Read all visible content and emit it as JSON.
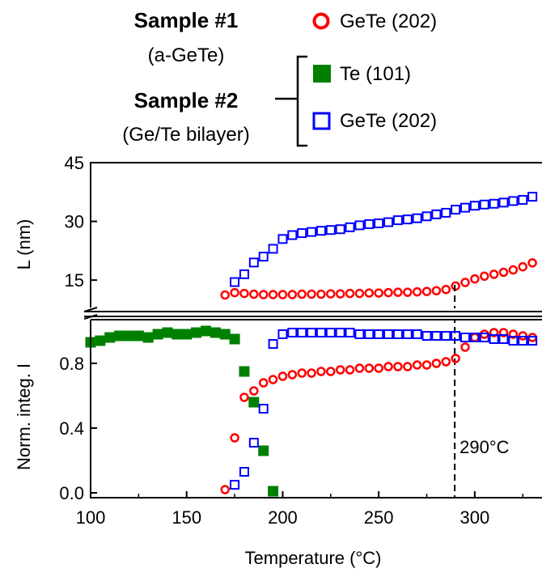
{
  "legend": {
    "sample1_title": "Sample #1",
    "sample1_sub": "(a-GeTe)",
    "sample2_title": "Sample #2",
    "sample2_sub": "(Ge/Te bilayer)",
    "entries": [
      {
        "label": "GeTe (202)",
        "marker": "open-circle",
        "color": "#ff0000",
        "sample": "Sample #1"
      },
      {
        "label": "Te (101)",
        "marker": "filled-square",
        "color": "#008000",
        "sample": "Sample #2"
      },
      {
        "label": "GeTe (202)",
        "marker": "open-square",
        "color": "#0000ff",
        "sample": "Sample #2"
      }
    ]
  },
  "chart_data": [
    {
      "type": "scatter",
      "panel": "top",
      "ylabel": "L (nm)",
      "ylim": [
        8,
        45
      ],
      "yticks": [
        15,
        30,
        45
      ],
      "xlim": [
        100,
        335
      ],
      "series": [
        {
          "name": "GeTe (202)",
          "marker": "open-circle",
          "color": "#ff0000",
          "x": [
            170,
            175,
            180,
            185,
            190,
            195,
            200,
            205,
            210,
            215,
            220,
            225,
            230,
            235,
            240,
            245,
            250,
            255,
            260,
            265,
            270,
            275,
            280,
            285,
            290,
            295,
            300,
            305,
            310,
            315,
            320,
            325,
            330
          ],
          "y": [
            11.2,
            11.8,
            11.6,
            11.4,
            11.3,
            11.3,
            11.3,
            11.3,
            11.4,
            11.4,
            11.4,
            11.5,
            11.5,
            11.6,
            11.6,
            11.7,
            11.7,
            11.8,
            11.9,
            11.9,
            12.0,
            12.1,
            12.3,
            12.6,
            13.5,
            14.4,
            15.3,
            16.0,
            16.5,
            17.0,
            17.6,
            18.4,
            19.4
          ]
        },
        {
          "name": "GeTe (202)",
          "marker": "open-square",
          "color": "#0000ff",
          "x": [
            175,
            180,
            185,
            190,
            195,
            200,
            205,
            210,
            215,
            220,
            225,
            230,
            235,
            240,
            245,
            250,
            255,
            260,
            265,
            270,
            275,
            280,
            285,
            290,
            295,
            300,
            305,
            310,
            315,
            320,
            325,
            330
          ],
          "y": [
            14.5,
            16.5,
            19.5,
            21.0,
            23.0,
            25.5,
            26.5,
            27.0,
            27.3,
            27.6,
            27.8,
            28.0,
            28.5,
            29.0,
            29.3,
            29.5,
            29.8,
            30.3,
            30.5,
            30.8,
            31.3,
            31.8,
            32.2,
            33.0,
            33.5,
            34.0,
            34.3,
            34.5,
            34.8,
            35.2,
            35.5,
            36.3
          ]
        }
      ]
    },
    {
      "type": "scatter",
      "panel": "bottom",
      "xlabel": "Temperature (°C)",
      "ylabel": "Norm. integ. I",
      "xlim": [
        100,
        335
      ],
      "ylim": [
        -0.03,
        1.07
      ],
      "xticks": [
        100,
        150,
        200,
        250,
        300
      ],
      "yticks": [
        0.0,
        0.4,
        0.8
      ],
      "ytick_labels": [
        "0.0",
        "0.4",
        "0.8"
      ],
      "annotation": {
        "text": "290°C",
        "x": 290
      },
      "series": [
        {
          "name": "Te (101)",
          "marker": "filled-square",
          "color": "#008000",
          "x": [
            100,
            105,
            110,
            115,
            120,
            125,
            130,
            135,
            140,
            145,
            150,
            155,
            160,
            165,
            170,
            175,
            180,
            185,
            190,
            195
          ],
          "y": [
            0.93,
            0.94,
            0.96,
            0.97,
            0.97,
            0.97,
            0.96,
            0.98,
            0.99,
            0.98,
            0.98,
            0.99,
            1.0,
            0.99,
            0.98,
            0.95,
            0.75,
            0.56,
            0.26,
            0.01
          ]
        },
        {
          "name": "GeTe (202)",
          "marker": "open-circle",
          "color": "#ff0000",
          "x": [
            170,
            175,
            180,
            185,
            190,
            195,
            200,
            205,
            210,
            215,
            220,
            225,
            230,
            235,
            240,
            245,
            250,
            255,
            260,
            265,
            270,
            275,
            280,
            285,
            290,
            295,
            300,
            305,
            310,
            315,
            320,
            325,
            330
          ],
          "y": [
            0.02,
            0.34,
            0.59,
            0.63,
            0.68,
            0.7,
            0.72,
            0.73,
            0.74,
            0.74,
            0.75,
            0.75,
            0.76,
            0.76,
            0.77,
            0.77,
            0.77,
            0.78,
            0.78,
            0.78,
            0.79,
            0.79,
            0.8,
            0.81,
            0.83,
            0.9,
            0.96,
            0.98,
            0.99,
            0.99,
            0.98,
            0.97,
            0.96
          ]
        },
        {
          "name": "GeTe (202)",
          "marker": "open-square",
          "color": "#0000ff",
          "x": [
            175,
            180,
            185,
            190,
            195,
            200,
            205,
            210,
            215,
            220,
            225,
            230,
            235,
            240,
            245,
            250,
            255,
            260,
            265,
            270,
            275,
            280,
            285,
            290,
            295,
            300,
            305,
            310,
            315,
            320,
            325,
            330
          ],
          "y": [
            0.05,
            0.13,
            0.31,
            0.52,
            0.92,
            0.98,
            0.99,
            0.99,
            0.99,
            0.99,
            0.99,
            0.99,
            0.99,
            0.98,
            0.98,
            0.98,
            0.98,
            0.98,
            0.98,
            0.98,
            0.97,
            0.97,
            0.97,
            0.97,
            0.96,
            0.96,
            0.96,
            0.95,
            0.95,
            0.94,
            0.94,
            0.94
          ]
        }
      ]
    }
  ]
}
